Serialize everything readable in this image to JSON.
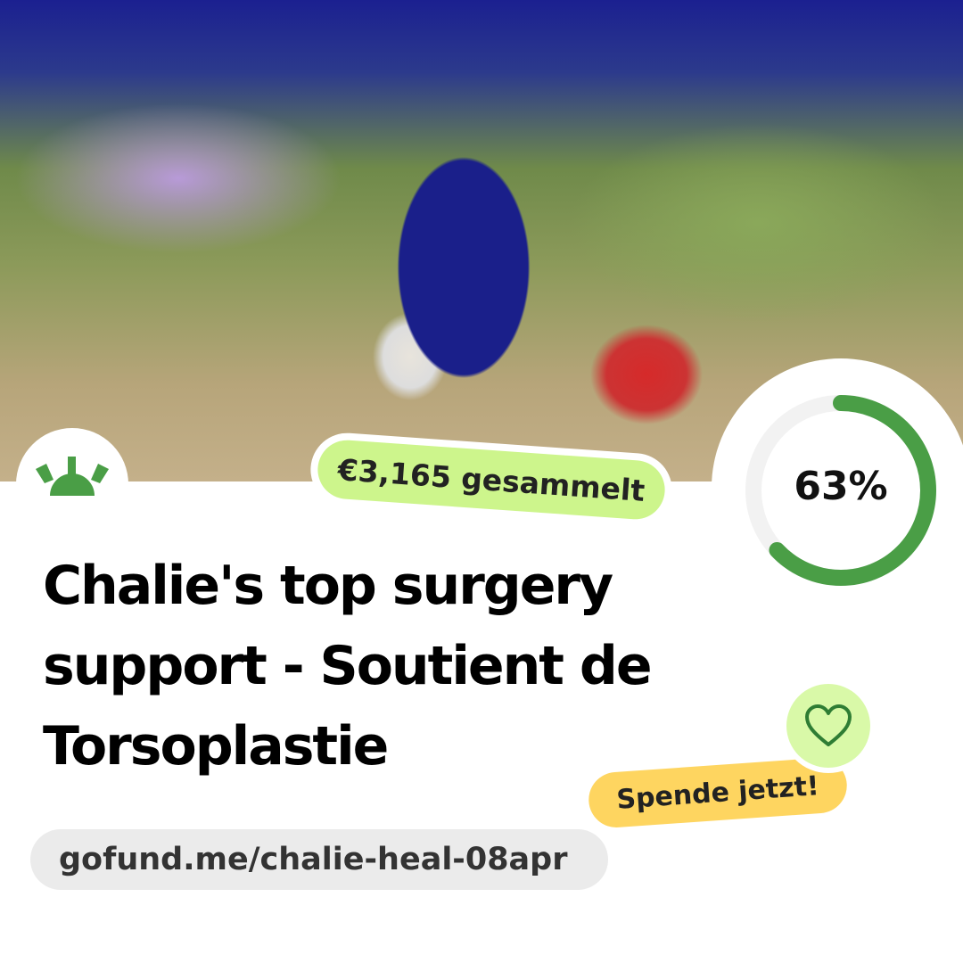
{
  "campaign": {
    "title": "Chalie's top surgery support - Soutient de Torsoplastie",
    "raised_label": "€3,165 gesammelt",
    "progress_percent": 63,
    "progress_label": "63%",
    "donate_label": "Spende jetzt!",
    "url": "gofund.me/chalie-heal-08apr"
  },
  "icons": {
    "logo": "gofundme-sun-logo",
    "heart": "heart-icon"
  },
  "colors": {
    "brand_green": "#4a9e46",
    "raised_bg": "#cdf58c",
    "donate_bg": "#fed560",
    "heart_bg": "#d9f9a8",
    "track": "#f2f2f2"
  }
}
